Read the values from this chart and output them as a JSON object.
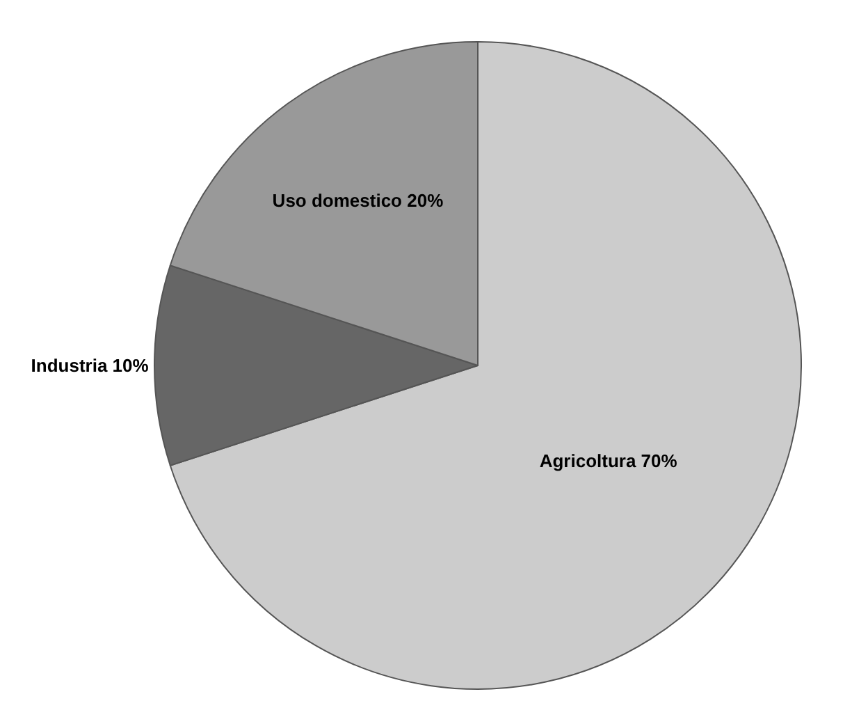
{
  "chart_data": {
    "type": "pie",
    "categories": [
      "Agricoltura",
      "Industria",
      "Uso domestico"
    ],
    "values": [
      70,
      10,
      20
    ],
    "value_labels": [
      "70%",
      "10%",
      "20%"
    ],
    "colors": [
      "#cccccc",
      "#666666",
      "#999999"
    ],
    "legend": false
  }
}
